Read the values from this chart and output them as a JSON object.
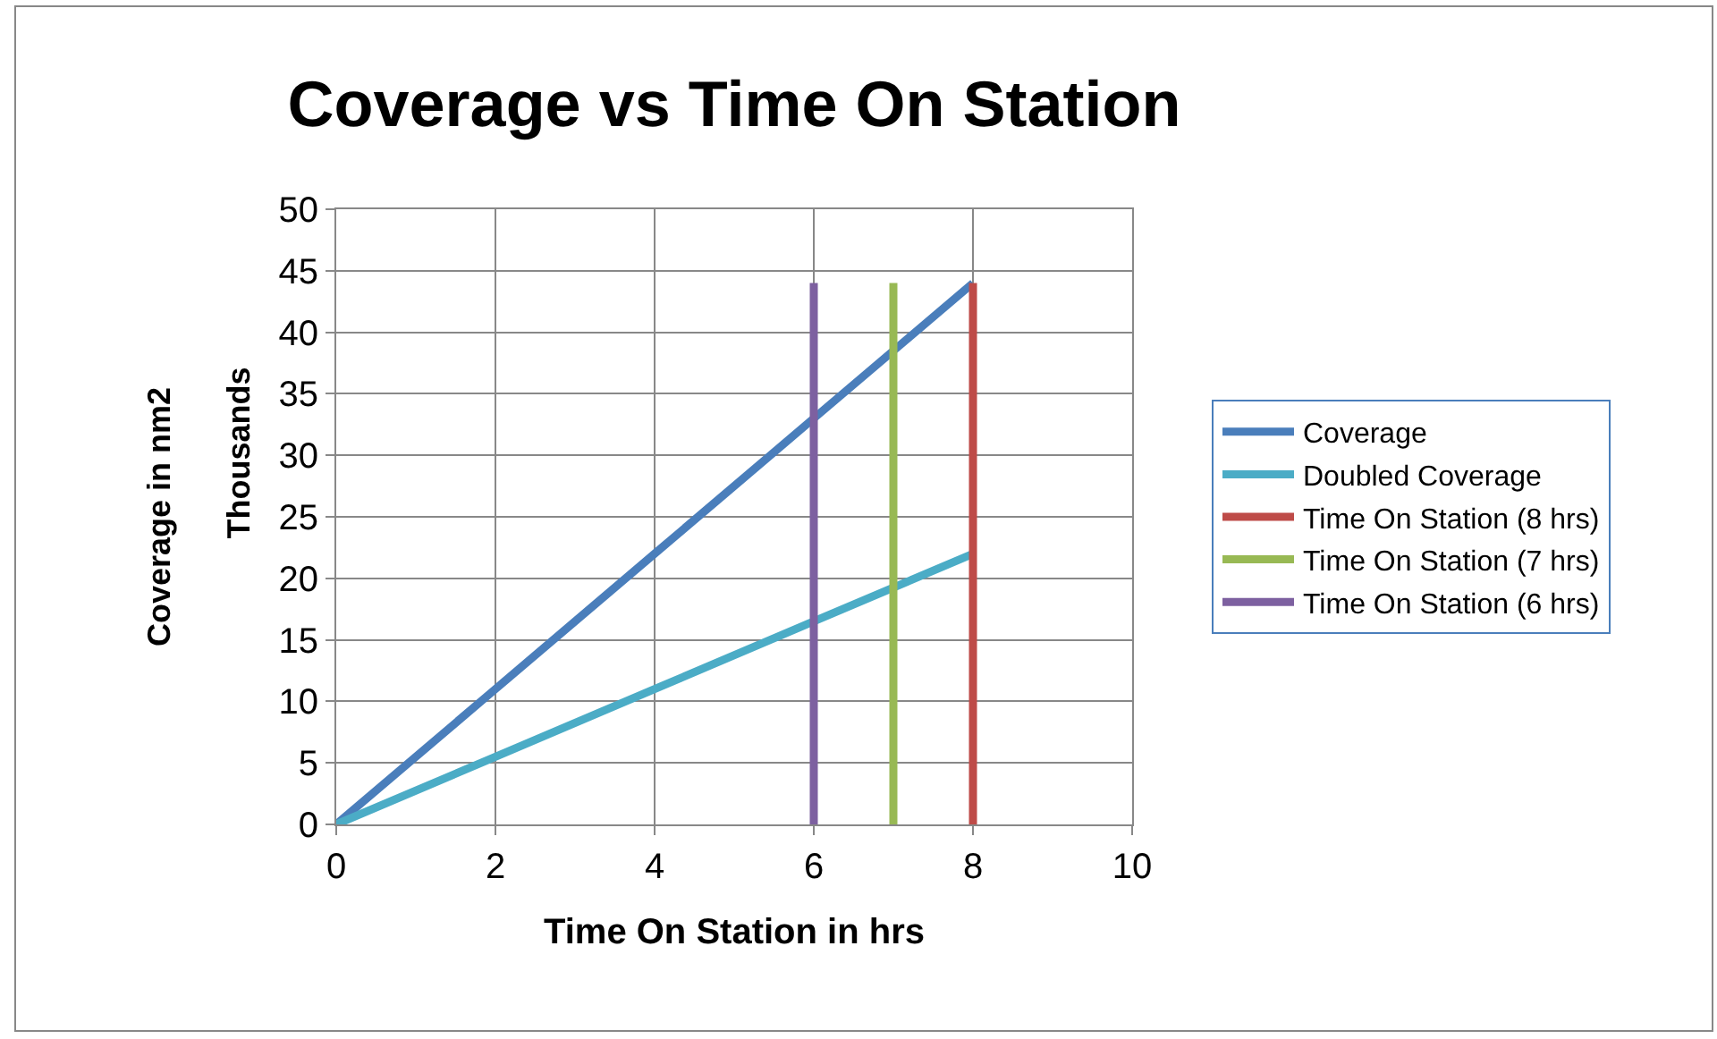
{
  "chart_data": {
    "type": "line",
    "title": "Coverage vs Time On Station",
    "xlabel": "Time On Station in hrs",
    "ylabel": "Coverage in nm2",
    "annotations": [
      "Thousands"
    ],
    "xlim": [
      0,
      10
    ],
    "xticks": [
      0,
      2,
      4,
      6,
      8,
      10
    ],
    "ylim": [
      0,
      50
    ],
    "yticks": [
      0,
      5,
      10,
      15,
      20,
      25,
      30,
      35,
      40,
      45,
      50
    ],
    "grid": true,
    "legend": "right",
    "series": [
      {
        "name": "Coverage",
        "color": "#4a7ebb",
        "x": [
          0,
          2,
          4,
          6,
          8
        ],
        "values": [
          0,
          11,
          22,
          33,
          44
        ]
      },
      {
        "name": "Doubled Coverage",
        "color": "#4bacc6",
        "x": [
          0,
          2,
          4,
          6,
          8
        ],
        "values": [
          0,
          5.5,
          11,
          16.5,
          22
        ]
      },
      {
        "name": "Time On Station (8 hrs)",
        "color": "#be4b48",
        "x": [
          8,
          8
        ],
        "values": [
          0,
          44
        ]
      },
      {
        "name": "Time On Station (7 hrs)",
        "color": "#98b954",
        "x": [
          7,
          7
        ],
        "values": [
          0,
          44
        ]
      },
      {
        "name": "Time On Station (6 hrs)",
        "color": "#7d60a0",
        "x": [
          6,
          6
        ],
        "values": [
          0,
          44
        ]
      }
    ]
  }
}
